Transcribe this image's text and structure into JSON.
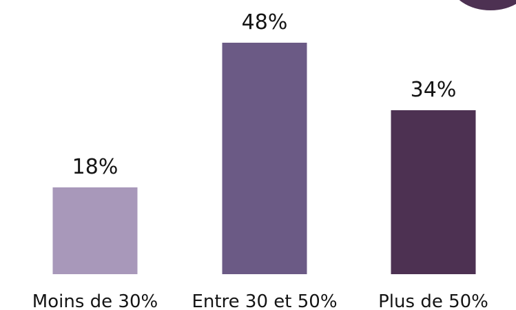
{
  "chart_data": {
    "type": "bar",
    "categories": [
      "Moins de 30%",
      "Entre 30 et 50%",
      "Plus de 50%"
    ],
    "values": [
      18,
      48,
      34
    ],
    "value_labels": [
      "18%",
      "48%",
      "34%"
    ],
    "colors": [
      "#a898ba",
      "#6b5a85",
      "#4d3152"
    ],
    "ylim": [
      0,
      50
    ],
    "grid": false,
    "legend": "none"
  },
  "decoration": {
    "corner_badge_color": "#4d3152"
  }
}
